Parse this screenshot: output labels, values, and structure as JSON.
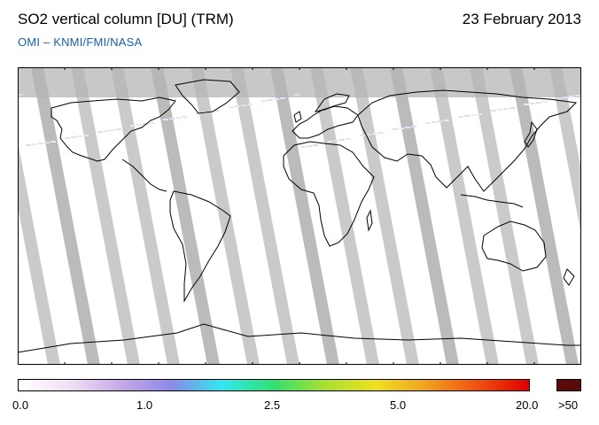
{
  "header": {
    "title": "SO2 vertical column [DU] (TRM)",
    "date": "23 February 2013",
    "subtitle": "OMI  –  KNMI/FMI/NASA"
  },
  "map": {
    "lon_ticks": [
      "-150",
      "-120",
      "-90",
      "-60",
      "-30",
      "0",
      "30",
      "60",
      "90",
      "120",
      "150"
    ],
    "lat_ticks": [
      "60",
      "30",
      "0",
      "-30",
      "-60"
    ],
    "lon_range": [
      -180,
      180
    ],
    "lat_range": [
      -90,
      90
    ],
    "projection": "equirectangular",
    "no_data_color": "#c8c8c8",
    "swath_color": "#b4b4b4"
  },
  "colorbar": {
    "labels": [
      "0.0",
      "1.0",
      "2.5",
      "5.0",
      "20.0",
      ">50"
    ],
    "colors": [
      "#ffffff",
      "#f0e0f4",
      "#c8a8e8",
      "#8a8ae8",
      "#30e8f0",
      "#30e070",
      "#a8e030",
      "#f0e020",
      "#f0a020",
      "#f05010",
      "#e00000"
    ],
    "over_color": "#5a0a0a"
  }
}
